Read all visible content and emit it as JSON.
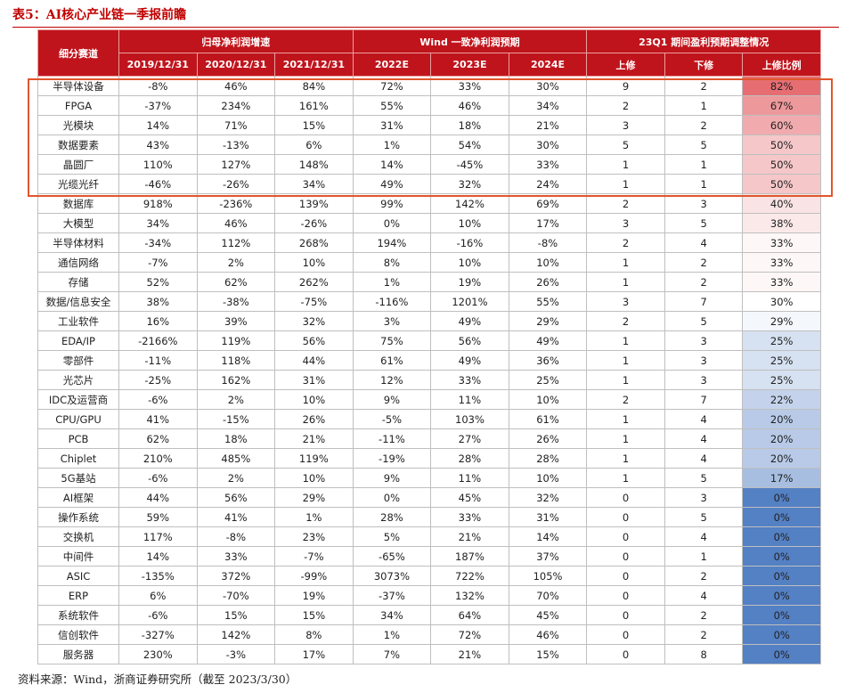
{
  "title": "表5：AI核心产业链一季报前瞻",
  "table": {
    "corner": "细分赛道",
    "groups": [
      "归母净利润增速",
      "Wind 一致净利润预期",
      "23Q1 期间盈利预期调整情况"
    ],
    "columns": [
      "2019/12/31",
      "2020/12/31",
      "2021/12/31",
      "2022E",
      "2023E",
      "2024E",
      "上修",
      "下修",
      "上修比例"
    ],
    "rows": [
      [
        "半导体设备",
        "-8%",
        "46%",
        "84%",
        "72%",
        "33%",
        "30%",
        "9",
        "2",
        "82%"
      ],
      [
        "FPGA",
        "-37%",
        "234%",
        "161%",
        "55%",
        "46%",
        "34%",
        "2",
        "1",
        "67%"
      ],
      [
        "光模块",
        "14%",
        "71%",
        "15%",
        "31%",
        "18%",
        "21%",
        "3",
        "2",
        "60%"
      ],
      [
        "数据要素",
        "43%",
        "-13%",
        "6%",
        "1%",
        "54%",
        "30%",
        "5",
        "5",
        "50%"
      ],
      [
        "晶圆厂",
        "110%",
        "127%",
        "148%",
        "14%",
        "-45%",
        "33%",
        "1",
        "1",
        "50%"
      ],
      [
        "光缆光纤",
        "-46%",
        "-26%",
        "34%",
        "49%",
        "32%",
        "24%",
        "1",
        "1",
        "50%"
      ],
      [
        "数据库",
        "918%",
        "-236%",
        "139%",
        "99%",
        "142%",
        "69%",
        "2",
        "3",
        "40%"
      ],
      [
        "大模型",
        "34%",
        "46%",
        "-26%",
        "0%",
        "10%",
        "17%",
        "3",
        "5",
        "38%"
      ],
      [
        "半导体材料",
        "-34%",
        "112%",
        "268%",
        "194%",
        "-16%",
        "-8%",
        "2",
        "4",
        "33%"
      ],
      [
        "通信网络",
        "-7%",
        "2%",
        "10%",
        "8%",
        "10%",
        "10%",
        "1",
        "2",
        "33%"
      ],
      [
        "存储",
        "52%",
        "62%",
        "262%",
        "1%",
        "19%",
        "26%",
        "1",
        "2",
        "33%"
      ],
      [
        "数据/信息安全",
        "38%",
        "-38%",
        "-75%",
        "-116%",
        "1201%",
        "55%",
        "3",
        "7",
        "30%"
      ],
      [
        "工业软件",
        "16%",
        "39%",
        "32%",
        "3%",
        "49%",
        "29%",
        "2",
        "5",
        "29%"
      ],
      [
        "EDA/IP",
        "-2166%",
        "119%",
        "56%",
        "75%",
        "56%",
        "49%",
        "1",
        "3",
        "25%"
      ],
      [
        "零部件",
        "-11%",
        "118%",
        "44%",
        "61%",
        "49%",
        "36%",
        "1",
        "3",
        "25%"
      ],
      [
        "光芯片",
        "-25%",
        "162%",
        "31%",
        "12%",
        "33%",
        "25%",
        "1",
        "3",
        "25%"
      ],
      [
        "IDC及运营商",
        "-6%",
        "2%",
        "10%",
        "9%",
        "11%",
        "10%",
        "2",
        "7",
        "22%"
      ],
      [
        "CPU/GPU",
        "41%",
        "-15%",
        "26%",
        "-5%",
        "103%",
        "61%",
        "1",
        "4",
        "20%"
      ],
      [
        "PCB",
        "62%",
        "18%",
        "21%",
        "-11%",
        "27%",
        "26%",
        "1",
        "4",
        "20%"
      ],
      [
        "Chiplet",
        "210%",
        "485%",
        "119%",
        "-19%",
        "28%",
        "28%",
        "1",
        "4",
        "20%"
      ],
      [
        "5G基站",
        "-6%",
        "2%",
        "10%",
        "9%",
        "11%",
        "10%",
        "1",
        "5",
        "17%"
      ],
      [
        "AI框架",
        "44%",
        "56%",
        "29%",
        "0%",
        "45%",
        "32%",
        "0",
        "3",
        "0%"
      ],
      [
        "操作系统",
        "59%",
        "41%",
        "1%",
        "28%",
        "33%",
        "31%",
        "0",
        "5",
        "0%"
      ],
      [
        "交换机",
        "117%",
        "-8%",
        "23%",
        "5%",
        "21%",
        "14%",
        "0",
        "4",
        "0%"
      ],
      [
        "中间件",
        "14%",
        "33%",
        "-7%",
        "-65%",
        "187%",
        "37%",
        "0",
        "1",
        "0%"
      ],
      [
        "ASIC",
        "-135%",
        "372%",
        "-99%",
        "3073%",
        "722%",
        "105%",
        "0",
        "2",
        "0%"
      ],
      [
        "ERP",
        "6%",
        "-70%",
        "19%",
        "-37%",
        "132%",
        "70%",
        "0",
        "4",
        "0%"
      ],
      [
        "系统软件",
        "-6%",
        "15%",
        "15%",
        "34%",
        "64%",
        "45%",
        "0",
        "2",
        "0%"
      ],
      [
        "信创软件",
        "-327%",
        "142%",
        "8%",
        "1%",
        "72%",
        "46%",
        "0",
        "2",
        "0%"
      ],
      [
        "服务器",
        "230%",
        "-3%",
        "17%",
        "7%",
        "21%",
        "15%",
        "0",
        "8",
        "0%"
      ]
    ]
  },
  "source": "资料来源：Wind，浙商证券研究所（截至 2023/3/30）"
}
